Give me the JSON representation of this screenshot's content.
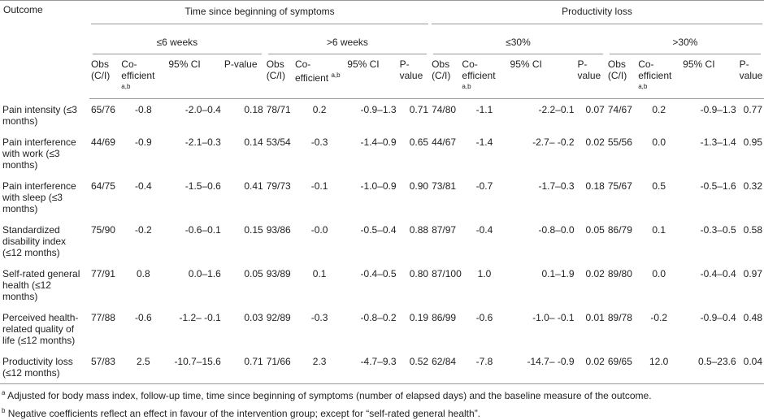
{
  "table": {
    "header": {
      "outcome": "Outcome",
      "groups": [
        {
          "title": "Time since beginning of symptoms",
          "subgroups": [
            "≤6 weeks",
            ">6 weeks"
          ]
        },
        {
          "title": "Productivity loss",
          "subgroups": [
            "≤30%",
            ">30%"
          ]
        }
      ],
      "columns": [
        {
          "text": "Obs (C/I)"
        },
        {
          "text": "Co-efficient",
          "sup": "a,b"
        },
        {
          "text": "95% CI"
        },
        {
          "text": "P-value"
        }
      ]
    },
    "rows": [
      {
        "outcome": "Pain intensity (≤3 months)",
        "cells": [
          "65/76",
          "-0.8",
          "-2.0–0.4",
          "0.18",
          "78/71",
          "0.2",
          "-0.9–1.3",
          "0.71",
          "74/80",
          "-1.1",
          "-2.2–0.1",
          "0.07",
          "74/67",
          "0.2",
          "-0.9–1.3",
          "0.77"
        ]
      },
      {
        "outcome": "Pain interference with work (≤3 months)",
        "cells": [
          "44/69",
          "-0.9",
          "-2.1–0.3",
          "0.14",
          "53/54",
          "-0.3",
          "-1.4–0.9",
          "0.65",
          "44/67",
          "-1.4",
          "-2.7– -0.2",
          "0.02",
          "55/56",
          "0.0",
          "-1.3–1.4",
          "0.95"
        ]
      },
      {
        "outcome": "Pain interference with sleep (≤3 months)",
        "cells": [
          "64/75",
          "-0.4",
          "-1.5–0.6",
          "0.41",
          "79/73",
          "-0.1",
          "-1.0–0.9",
          "0.90",
          "73/81",
          "-0.7",
          "-1.7–0.3",
          "0.18",
          "75/67",
          "0.5",
          "-0.5–1.6",
          "0.32"
        ]
      },
      {
        "outcome": "Standardized disability index (≤12 months)",
        "cells": [
          "75/90",
          "-0.2",
          "-0.6–0.1",
          "0.15",
          "93/86",
          "-0.0",
          "-0.5–0.4",
          "0.88",
          "87/97",
          "-0.4",
          "-0.8–0.0",
          "0.05",
          "86/79",
          "0.1",
          "-0.3–0.5",
          "0.58"
        ]
      },
      {
        "outcome": "Self-rated general health (≤12 months)",
        "cells": [
          "77/91",
          "0.8",
          "0.0–1.6",
          "0.05",
          "93/89",
          "0.1",
          "-0.4–0.5",
          "0.80",
          "87/100",
          "1.0",
          "0.1–1.9",
          "0.02",
          "89/80",
          "0.0",
          "-0.4–0.4",
          "0.97"
        ]
      },
      {
        "outcome": "Perceived health-related quality of life (≤12 months)",
        "cells": [
          "77/88",
          "-0.6",
          "-1.2– -0.1",
          "0.03",
          "92/89",
          "-0.3",
          "-0.8–0.2",
          "0.19",
          "86/99",
          "-0.6",
          "-1.0– -0.1",
          "0.01",
          "89/78",
          "-0.2",
          "-0.9–0.4",
          "0.48"
        ]
      },
      {
        "outcome": "Productivity loss (≤12 months)",
        "cells": [
          "57/83",
          "2.5",
          "-10.7–15.6",
          "0.71",
          "71/66",
          "2.3",
          "-4.7–9.3",
          "0.52",
          "62/84",
          "-7.8",
          "-14.7– -0.9",
          "0.02",
          "69/65",
          "12.0",
          "0.5–23.6",
          "0.04"
        ]
      }
    ]
  },
  "footnotes": [
    {
      "mark": "a",
      "text": "Adjusted for body mass index, follow-up time, time since beginning of symptoms (number of elapsed days) and the baseline measure of the outcome."
    },
    {
      "mark": "b",
      "text": "Negative coefficients reflect an effect in favour of the intervention group; except for “self-rated general health”."
    }
  ]
}
